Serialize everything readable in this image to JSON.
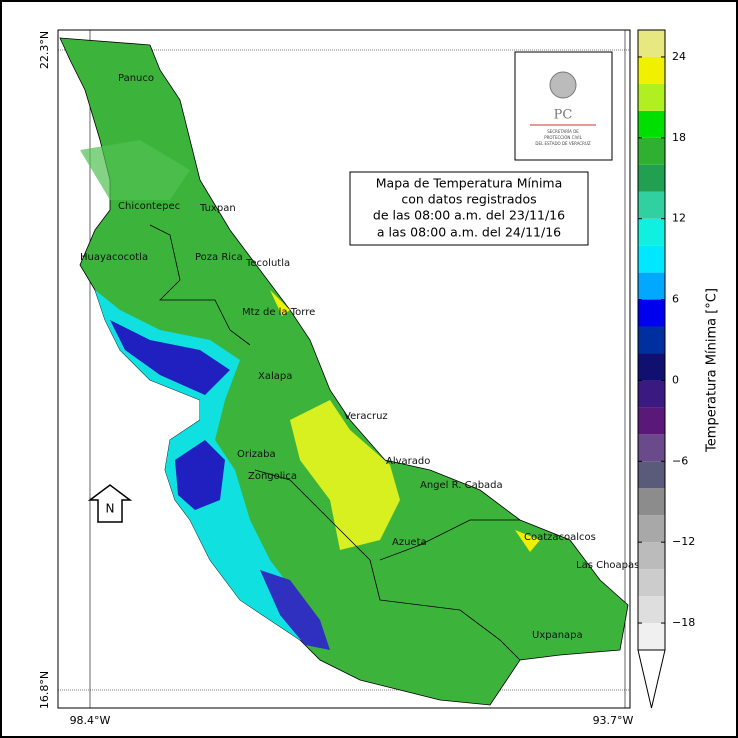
{
  "title_lines": [
    "Mapa de Temperatura Mínima",
    "con datos registrados",
    "de las 08:00 a.m. del 23/11/16",
    "a las 08:00 a.m. del 24/11/16"
  ],
  "latitude_labels": [
    "22.3°N",
    "16.8°N"
  ],
  "longitude_labels": [
    "98.4°W",
    "93.7°W"
  ],
  "cities": [
    "Panuco",
    "Chicontepec",
    "Tuxpan",
    "Huayacocotla",
    "Poza Rica",
    "Tecolutla",
    "Mtz de la Torre",
    "Xalapa",
    "Veracruz",
    "Alvarado",
    "Orizaba",
    "Zongolica",
    "Angel R. Cabada",
    "Coatzacoalcos",
    "Azueta",
    "Las Choapas",
    "Uxpanapa"
  ],
  "north_arrow": "N",
  "logo": {
    "acronym": "PC",
    "lines": [
      "SECRETARÍA DE",
      "PROTECCIÓN CIVIL",
      "DEL ESTADO DE VERACRUZ"
    ]
  },
  "colorbar": {
    "label": "Temperatura Mínima [°C]",
    "lim": [
      -20,
      26
    ],
    "ticks": [
      {
        "value": -18,
        "label": "−18"
      },
      {
        "value": -12,
        "label": "−12"
      },
      {
        "value": -6,
        "label": "−6"
      },
      0,
      6,
      12,
      18,
      24
    ],
    "extend": "min",
    "colors": [
      "#f0f0f0",
      "#dedede",
      "#cccccc",
      "#bbbbbb",
      "#a8a8a8",
      "#8c8c8c",
      "#5a5a7a",
      "#6a4a8a",
      "#5a1878",
      "#3a1a80",
      "#101070",
      "#0030a0",
      "#0000ee",
      "#00a8ff",
      "#00e8ff",
      "#10f0e0",
      "#30d0a0",
      "#20a050",
      "#30b030",
      "#00e000",
      "#b0f020",
      "#f0f000",
      "#e8e880"
    ]
  }
}
